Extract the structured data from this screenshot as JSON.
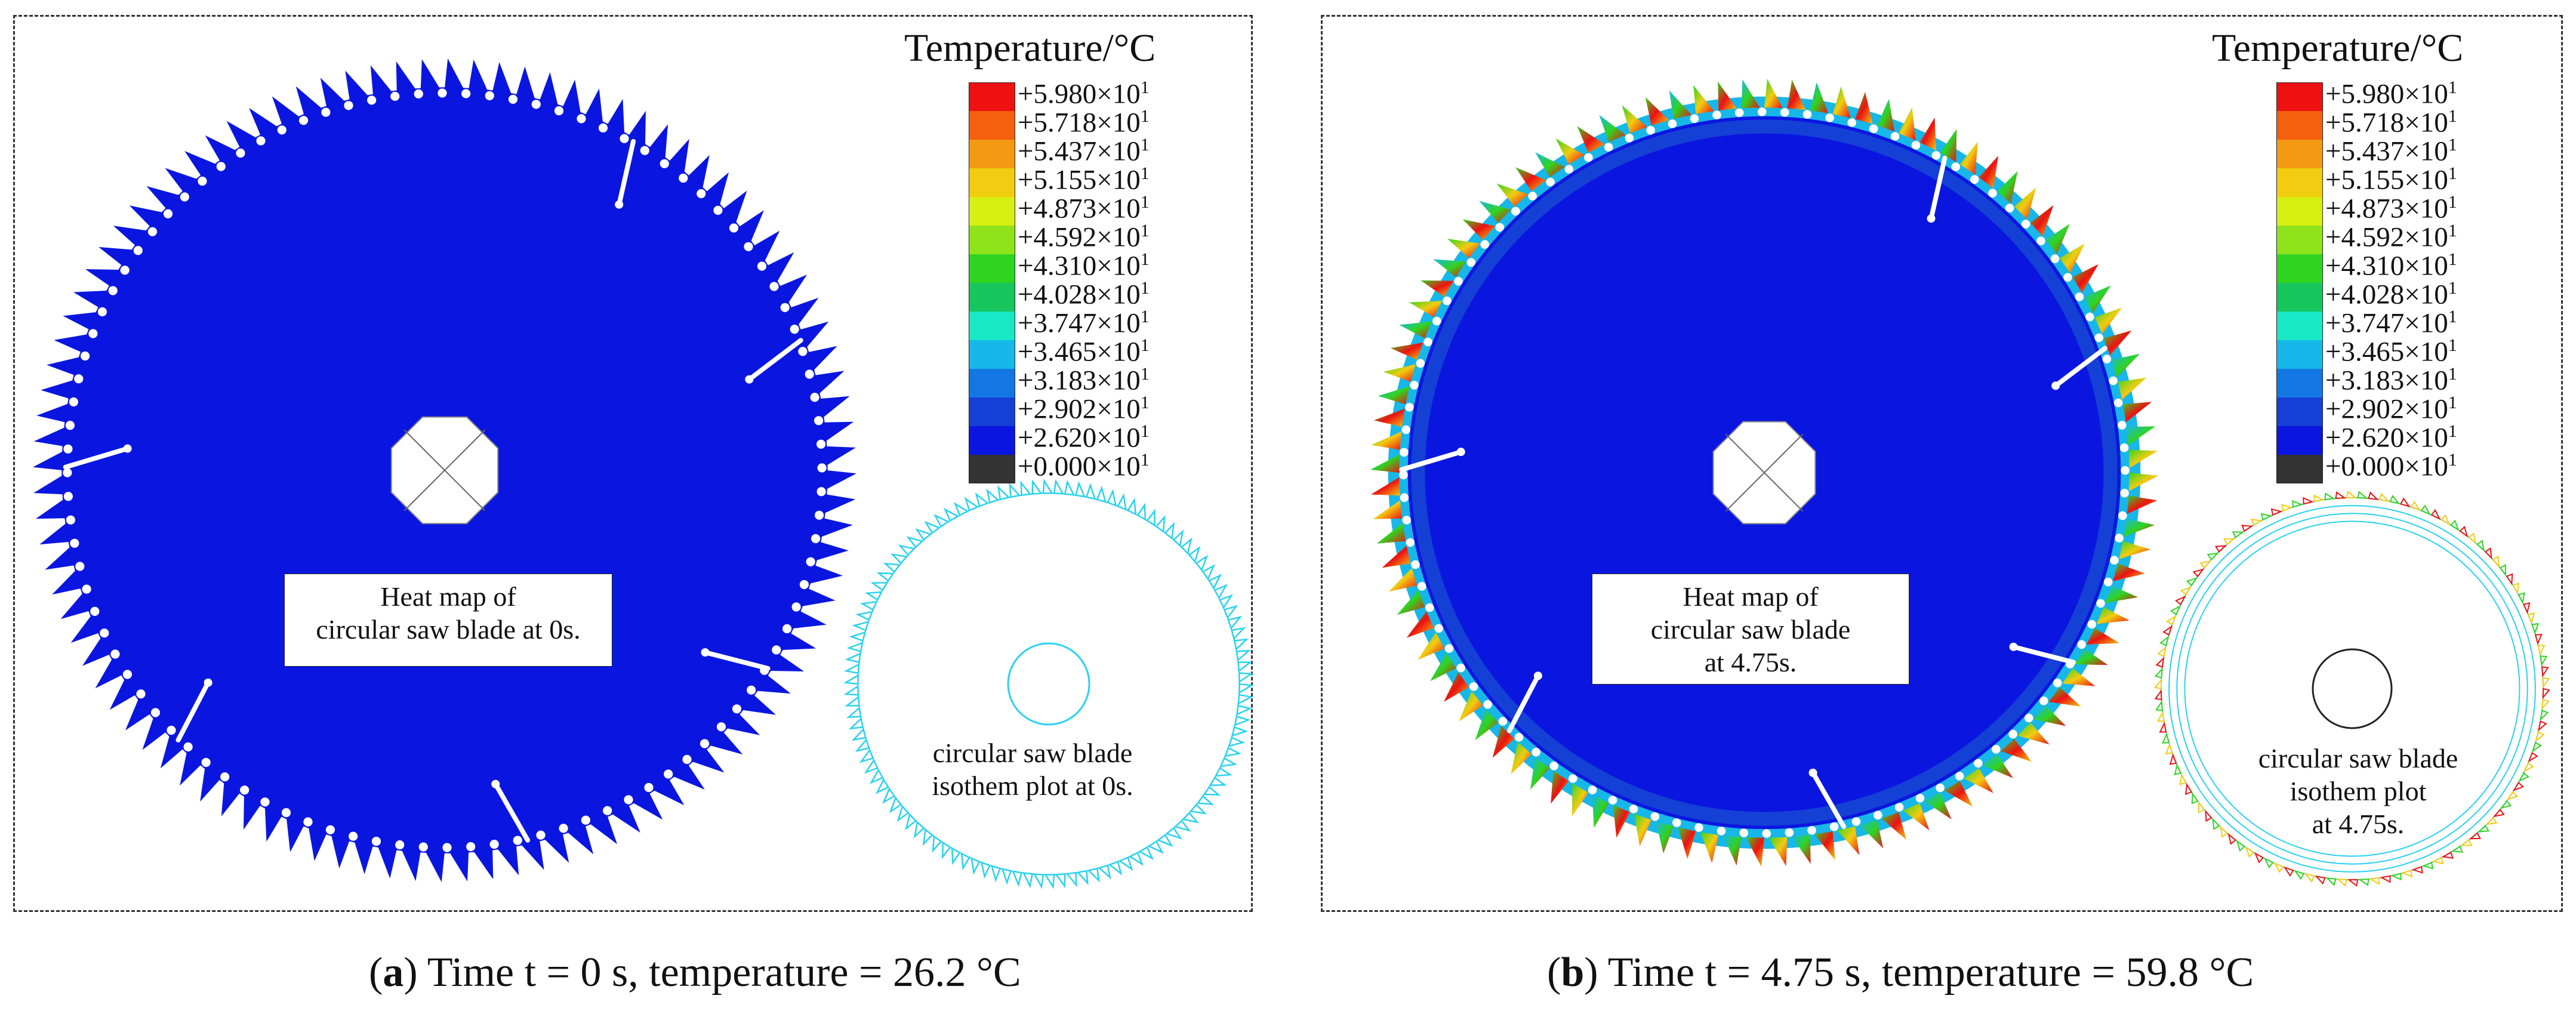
{
  "legend": {
    "title": "Temperature/°C",
    "entries": [
      {
        "label": "+5.980×10",
        "color": "#ee1111"
      },
      {
        "label": "+5.718×10",
        "color": "#f26010"
      },
      {
        "label": "+5.437×10",
        "color": "#f39a12"
      },
      {
        "label": "+5.155×10",
        "color": "#f2cc11"
      },
      {
        "label": "+4.873×10",
        "color": "#d7ef12"
      },
      {
        "label": "+4.592×10",
        "color": "#8fe31b"
      },
      {
        "label": "+4.310×10",
        "color": "#2fd420"
      },
      {
        "label": "+4.028×10",
        "color": "#18c65e"
      },
      {
        "label": "+3.747×10",
        "color": "#19e8c4"
      },
      {
        "label": "+3.465×10",
        "color": "#17b7e9"
      },
      {
        "label": "+3.183×10",
        "color": "#1277e3"
      },
      {
        "label": "+2.902×10",
        "color": "#1540d6"
      },
      {
        "label": "+2.620×10",
        "color": "#0a16e0"
      },
      {
        "label": "+0.000×10",
        "color": "#333333"
      }
    ],
    "exponent": "1"
  },
  "panel_a": {
    "heat_label": [
      "Heat map of",
      "circular saw blade at 0s."
    ],
    "iso_label": [
      "circular saw blade",
      "isothem plot at 0s."
    ],
    "caption_letter": "a",
    "caption_text": " Time t = 0 s, temperature = 26.2 °C"
  },
  "panel_b": {
    "heat_label": [
      "Heat map of",
      "circular saw blade",
      "at 4.75s."
    ],
    "iso_label": [
      "circular saw blade",
      "isothem plot",
      "at 4.75s."
    ],
    "caption_letter": "b",
    "caption_text": " Time t = 4.75 s, temperature = 59.8 °C"
  },
  "colors": {
    "blade_base": "#0a16e0",
    "blade_rim_inner": "#1540d6",
    "blade_rim_mid": "#17b7e9",
    "tooth_hot": "#ee1111",
    "tooth_warm": "#f2cc11",
    "tooth_mid": "#2fd420",
    "iso_cold": "#29d2ef"
  }
}
